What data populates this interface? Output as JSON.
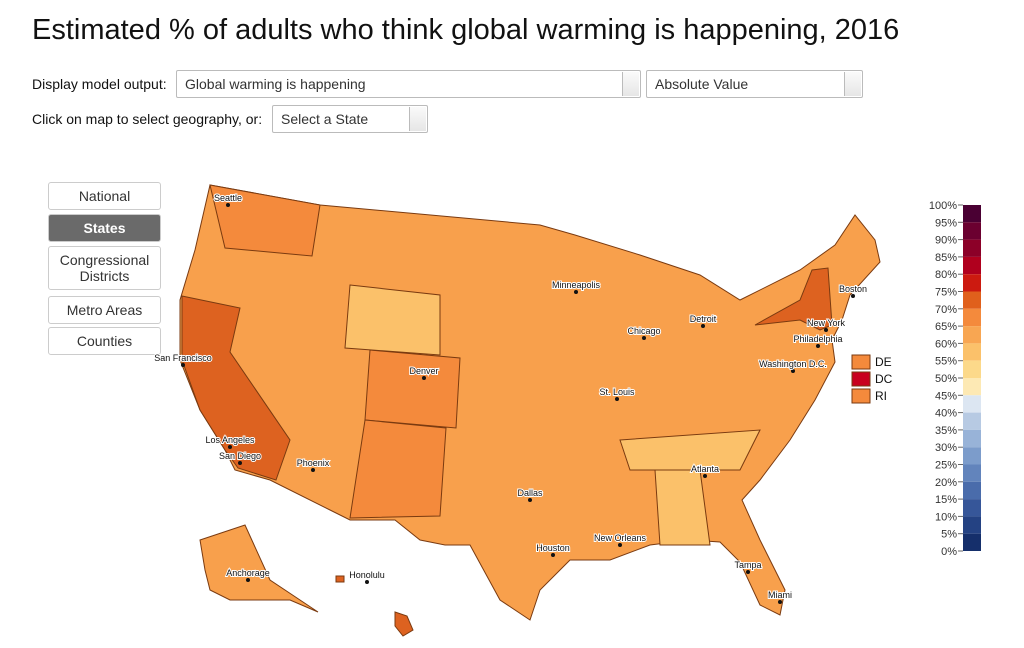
{
  "header": {
    "title": "Estimated % of adults who think global warming is happening, 2016"
  },
  "controls": {
    "display_label": "Display model output:",
    "output_select": "Global warming is happening",
    "value_select": "Absolute Value",
    "geo_label": "Click on map to select geography, or:",
    "state_select": "Select a State"
  },
  "geo_buttons": [
    {
      "label": "National",
      "active": false
    },
    {
      "label": "States",
      "active": true
    },
    {
      "label": "Congressional Districts",
      "active": false
    },
    {
      "label": "Metro Areas",
      "active": false
    },
    {
      "label": "Counties",
      "active": false
    }
  ],
  "map": {
    "cities": [
      "Seattle",
      "San Francisco",
      "Los Angeles",
      "San Diego",
      "Phoenix",
      "Denver",
      "Dallas",
      "Houston",
      "New Orleans",
      "Minneapolis",
      "Chicago",
      "St. Louis",
      "Detroit",
      "Atlanta",
      "Tampa",
      "Miami",
      "Washington D.C.",
      "Philadelphia",
      "New York",
      "Boston",
      "Anchorage",
      "Honolulu"
    ],
    "small_states": [
      {
        "label": "DE",
        "color": "#f48a3c"
      },
      {
        "label": "DC",
        "color": "#c8001e"
      },
      {
        "label": "RI",
        "color": "#f48a3c"
      }
    ]
  },
  "legend": {
    "labels": [
      "100%",
      "95%",
      "90%",
      "85%",
      "80%",
      "75%",
      "70%",
      "65%",
      "60%",
      "55%",
      "50%",
      "45%",
      "40%",
      "35%",
      "30%",
      "25%",
      "20%",
      "15%",
      "10%",
      "5%",
      "0%"
    ],
    "colors": [
      "#4a0033",
      "#6b0030",
      "#8c0028",
      "#b0001e",
      "#cc1a10",
      "#e0601c",
      "#f48a3c",
      "#f8a652",
      "#fbc16a",
      "#fcd98a",
      "#fde9b4",
      "#dce6f2",
      "#b7cae3",
      "#98b3d8",
      "#7c9ccb",
      "#6284bc",
      "#4a6cab",
      "#365699",
      "#244283",
      "#152f6b",
      "#0b1f52"
    ]
  }
}
